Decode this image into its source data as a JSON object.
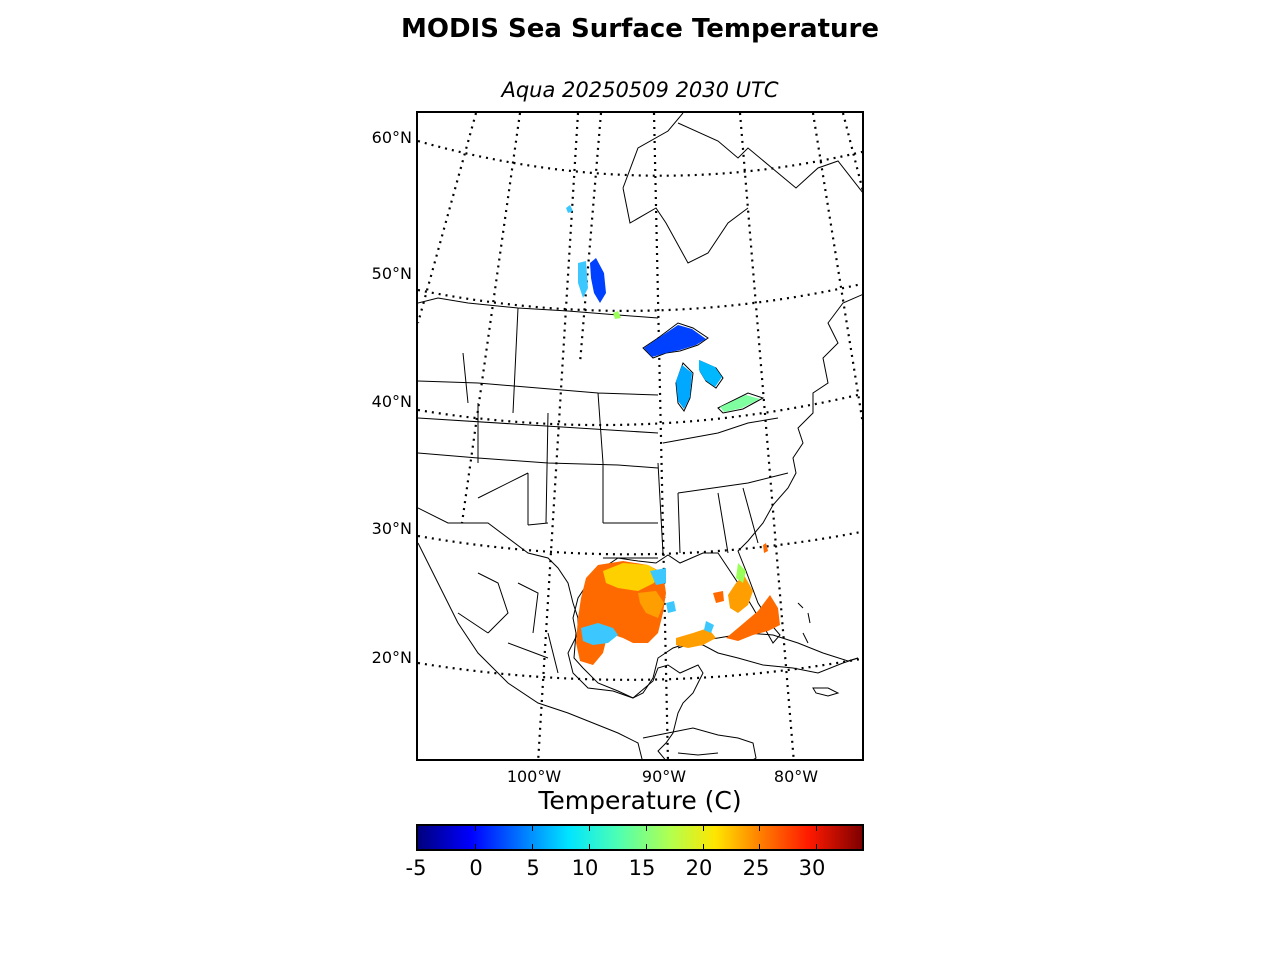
{
  "title": "MODIS Sea Surface Temperature",
  "subtitle": "Aqua 20250509 2030 UTC",
  "lat_labels": [
    "60°N",
    "50°N",
    "40°N",
    "30°N",
    "20°N"
  ],
  "lon_labels": [
    "100°W",
    "90°W",
    "80°W"
  ],
  "colorbar": {
    "title": "Temperature (C)",
    "ticks": [
      "-5",
      "0",
      "5",
      "10",
      "15",
      "20",
      "25",
      "30"
    ],
    "min": -5,
    "max": 34,
    "colormap": "jet"
  },
  "colors": {
    "coastline": "#000000",
    "graticule": "#000000",
    "warm_sst": "#ff6a00",
    "mid_sst": "#ffd000",
    "cold_lake": "#0040ff",
    "lake_mid": "#00c8ff"
  }
}
